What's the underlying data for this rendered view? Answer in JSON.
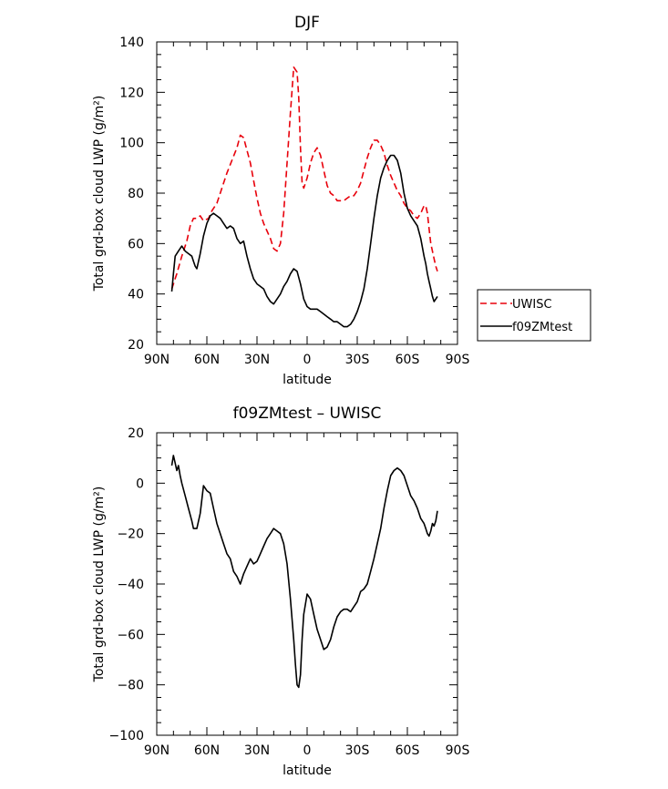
{
  "chart_data": [
    {
      "type": "line",
      "title": "DJF",
      "xlabel": "latitude",
      "ylabel": "Total grd-box cloud LWP (g/m²)",
      "xlim": [
        90,
        -90
      ],
      "ylim": [
        20,
        140
      ],
      "x_ticks": [
        90,
        60,
        30,
        0,
        -30,
        -60,
        -90
      ],
      "x_tick_labels": [
        "90N",
        "60N",
        "30N",
        "0",
        "30S",
        "60S",
        "90S"
      ],
      "y_ticks": [
        20,
        40,
        60,
        80,
        100,
        120,
        140
      ],
      "y_tick_labels": [
        "20",
        "40",
        "60",
        "80",
        "100",
        "120",
        "140"
      ],
      "legend": [
        {
          "name": "UWISC",
          "color": "#e8000b",
          "dash": true
        },
        {
          "name": "f09ZMtest",
          "color": "#000000",
          "dash": false
        }
      ],
      "series": [
        {
          "name": "UWISC",
          "color": "#e8000b",
          "dash": true,
          "x": [
            81,
            78,
            75,
            72,
            70,
            68,
            66,
            64,
            62,
            59,
            57,
            54,
            51,
            48,
            45,
            42,
            40,
            38,
            36,
            34,
            32,
            30,
            28,
            26,
            24,
            22,
            20,
            18,
            16,
            14,
            12,
            10,
            8,
            6,
            5,
            4,
            3,
            2,
            0,
            -2,
            -4,
            -6,
            -8,
            -10,
            -12,
            -14,
            -16,
            -18,
            -20,
            -22,
            -24,
            -26,
            -28,
            -30,
            -32,
            -34,
            -36,
            -38,
            -40,
            -42,
            -44,
            -46,
            -48,
            -50,
            -52,
            -54,
            -56,
            -58,
            -60,
            -62,
            -64,
            -66,
            -68,
            -70,
            -71,
            -72,
            -73,
            -74,
            -75,
            -76,
            -77,
            -78
          ],
          "values": [
            42,
            48,
            55,
            61,
            67,
            70,
            70,
            71,
            69,
            70,
            73,
            76,
            82,
            88,
            93,
            98,
            103,
            102,
            97,
            92,
            85,
            78,
            72,
            68,
            65,
            62,
            58,
            57,
            60,
            72,
            92,
            112,
            130,
            128,
            118,
            98,
            84,
            82,
            86,
            92,
            96,
            98,
            95,
            89,
            83,
            80,
            79,
            77,
            77,
            77,
            78,
            79,
            79,
            81,
            84,
            89,
            94,
            98,
            101,
            101,
            99,
            96,
            91,
            87,
            84,
            81,
            79,
            76,
            74,
            73,
            71,
            70,
            72,
            75,
            75,
            72,
            66,
            60,
            57,
            54,
            51,
            49
          ]
        },
        {
          "name": "f09ZMtest",
          "color": "#000000",
          "dash": false,
          "x": [
            81,
            80,
            79,
            77,
            75,
            73,
            71,
            69,
            68,
            67,
            66,
            64,
            62,
            60,
            58,
            56,
            54,
            52,
            50,
            48,
            46,
            44,
            42,
            40,
            38,
            36,
            34,
            32,
            30,
            28,
            26,
            24,
            22,
            20,
            18,
            16,
            14,
            12,
            10,
            8,
            6,
            4,
            2,
            0,
            -2,
            -4,
            -6,
            -8,
            -10,
            -12,
            -14,
            -16,
            -18,
            -20,
            -22,
            -24,
            -26,
            -28,
            -30,
            -32,
            -34,
            -36,
            -38,
            -40,
            -42,
            -44,
            -46,
            -48,
            -50,
            -52,
            -54,
            -56,
            -58,
            -60,
            -62,
            -64,
            -66,
            -68,
            -70,
            -71,
            -72,
            -73,
            -74,
            -75,
            -76,
            -77,
            -78
          ],
          "values": [
            41,
            48,
            55,
            57,
            59,
            57,
            56,
            55,
            53,
            51,
            50,
            56,
            63,
            68,
            71,
            72,
            71,
            70,
            68,
            66,
            67,
            66,
            62,
            60,
            61,
            55,
            50,
            46,
            44,
            43,
            42,
            39,
            37,
            36,
            38,
            40,
            43,
            45,
            48,
            50,
            49,
            44,
            38,
            35,
            34,
            34,
            34,
            33,
            32,
            31,
            30,
            29,
            29,
            28,
            27,
            27,
            28,
            30,
            33,
            37,
            42,
            50,
            60,
            70,
            79,
            86,
            90,
            93,
            95,
            95,
            93,
            88,
            80,
            74,
            71,
            69,
            67,
            62,
            55,
            52,
            48,
            45,
            42,
            39,
            37,
            38,
            39
          ]
        }
      ]
    },
    {
      "type": "line",
      "title": "f09ZMtest – UWISC",
      "xlabel": "latitude",
      "ylabel": "Total grd-box cloud LWP (g/m²)",
      "xlim": [
        90,
        -90
      ],
      "ylim": [
        -100,
        20
      ],
      "x_ticks": [
        90,
        60,
        30,
        0,
        -30,
        -60,
        -90
      ],
      "x_tick_labels": [
        "90N",
        "60N",
        "30N",
        "0",
        "30S",
        "60S",
        "90S"
      ],
      "y_ticks": [
        -100,
        -80,
        -60,
        -40,
        -20,
        0,
        20
      ],
      "y_tick_labels": [
        "−100",
        "−80",
        "−60",
        "−40",
        "−20",
        "0",
        "20"
      ],
      "series": [
        {
          "name": "f09ZMtest - UWISC",
          "color": "#000000",
          "dash": false,
          "x": [
            81,
            80,
            79,
            78,
            77,
            76,
            75,
            73,
            71,
            69,
            68,
            67,
            66,
            64,
            62,
            60,
            58,
            56,
            54,
            52,
            50,
            48,
            46,
            44,
            42,
            40,
            38,
            36,
            34,
            32,
            30,
            28,
            26,
            24,
            22,
            20,
            18,
            16,
            14,
            12,
            10,
            8,
            7,
            6,
            5,
            4,
            3,
            2,
            0,
            -2,
            -4,
            -6,
            -8,
            -10,
            -12,
            -14,
            -16,
            -18,
            -20,
            -22,
            -24,
            -26,
            -28,
            -30,
            -32,
            -34,
            -36,
            -38,
            -40,
            -42,
            -44,
            -46,
            -48,
            -50,
            -52,
            -54,
            -56,
            -58,
            -60,
            -62,
            -64,
            -66,
            -68,
            -70,
            -71,
            -72,
            -73,
            -74,
            -75,
            -76,
            -77,
            -78
          ],
          "values": [
            7,
            11,
            8,
            5,
            7,
            3,
            0,
            -5,
            -10,
            -15,
            -18,
            -18,
            -18,
            -12,
            -1,
            -3,
            -4,
            -10,
            -16,
            -20,
            -24,
            -28,
            -30,
            -35,
            -37,
            -40,
            -36,
            -33,
            -30,
            -32,
            -31,
            -28,
            -25,
            -22,
            -20,
            -18,
            -19,
            -20,
            -24,
            -32,
            -46,
            -62,
            -72,
            -80,
            -81,
            -76,
            -62,
            -52,
            -44,
            -46,
            -52,
            -58,
            -62,
            -66,
            -65,
            -62,
            -57,
            -53,
            -51,
            -50,
            -50,
            -51,
            -49,
            -47,
            -43,
            -42,
            -40,
            -35,
            -30,
            -24,
            -18,
            -10,
            -3,
            3,
            5,
            6,
            5,
            3,
            -1,
            -5,
            -7,
            -10,
            -14,
            -16,
            -18,
            -20,
            -21,
            -19,
            -16,
            -17,
            -15,
            -11
          ]
        }
      ]
    }
  ]
}
